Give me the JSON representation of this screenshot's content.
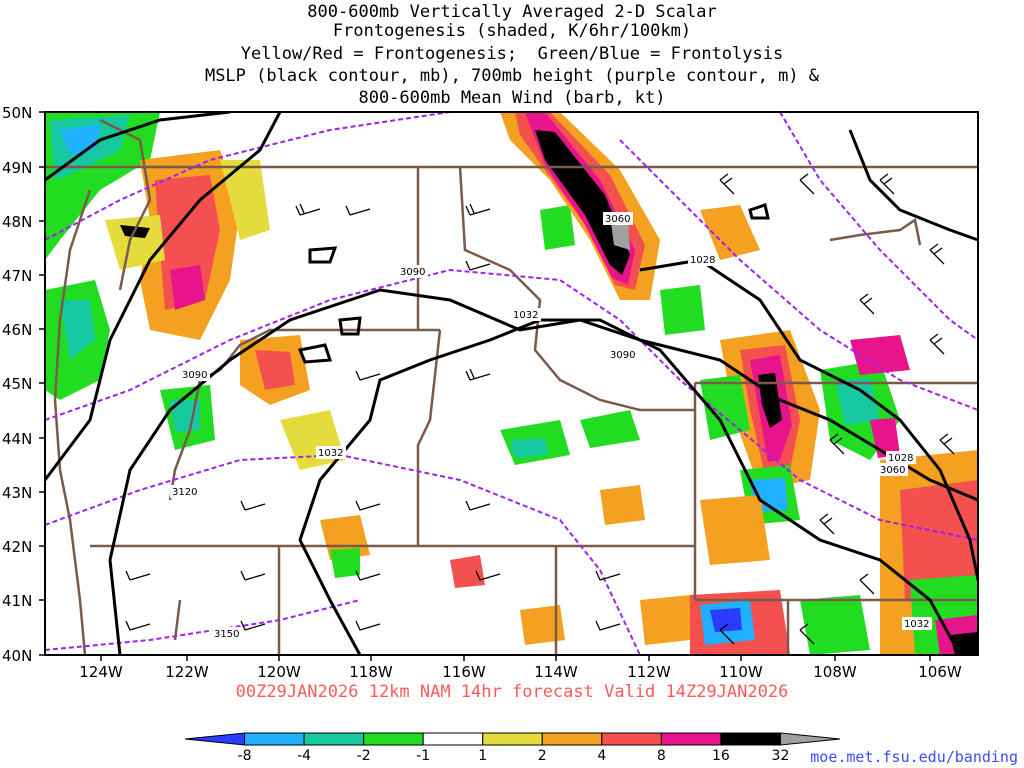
{
  "title": [
    "800-600mb Vertically Averaged 2-D Scalar",
    "Frontogenesis (shaded, K/6hr/100km)",
    "Yellow/Red = Frontogenesis;  Green/Blue = Frontolysis",
    "MSLP (black contour, mb), 700mb height (purple contour, m) &",
    "800-600mb Mean Wind (barb, kt)"
  ],
  "lat_labels": [
    "50N",
    "49N",
    "48N",
    "47N",
    "46N",
    "45N",
    "44N",
    "43N",
    "42N",
    "41N",
    "40N"
  ],
  "lon_labels": [
    "124W",
    "122W",
    "120W",
    "118W",
    "116W",
    "114W",
    "112W",
    "110W",
    "108W",
    "106W"
  ],
  "valid_line": "00Z29JAN2026 12km NAM 14hr forecast Valid 14Z29JAN2026",
  "credit": "moe.met.fsu.edu/banding",
  "colorbar": {
    "ticks": [
      "-8",
      "-4",
      "-2",
      "-1",
      "1",
      "2",
      "4",
      "8",
      "16",
      "32"
    ],
    "colors": [
      "#2a3cff",
      "#1fb0ff",
      "#15c8a0",
      "#22dc22",
      "#ffffff",
      "#e4dc3c",
      "#f4a020",
      "#f45050",
      "#e8148c",
      "#000000",
      "#a0a0a0"
    ]
  },
  "contour_labels": {
    "mslp": [
      "1028",
      "1032",
      "1032",
      "1028",
      "1032"
    ],
    "height": [
      "3060",
      "3090",
      "3090",
      "3090",
      "3120",
      "3150",
      "3060"
    ]
  },
  "colors": {
    "state_lines": "#7a5a48",
    "mslp": "#000000",
    "height": "#a020f0"
  }
}
